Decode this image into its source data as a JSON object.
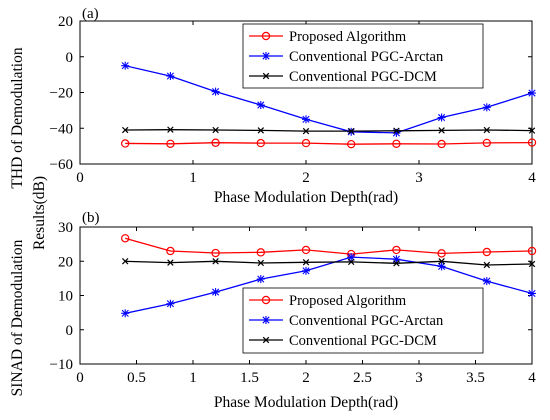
{
  "ylabel_top": "THD of Demodulation",
  "ylabel_bottom": "SINAD of Demodulation",
  "ylabel_shared": "Results(dB)",
  "colors": {
    "proposed": "#ff0000",
    "arctan": "#0000ff",
    "dcm": "#000000"
  },
  "chart_data": [
    {
      "type": "line",
      "panel_label": "(a)",
      "xlabel": "Phase Modulation Depth(rad)",
      "xlim": [
        0,
        4
      ],
      "ylim": [
        -60,
        20
      ],
      "xticks": [
        0,
        1,
        2,
        3,
        4
      ],
      "yticks": [
        -60,
        -40,
        -20,
        0,
        20
      ],
      "legend_position": "top-right",
      "x": [
        0.4,
        0.8,
        1.2,
        1.6,
        2.0,
        2.4,
        2.8,
        3.2,
        3.6,
        4.0
      ],
      "series": [
        {
          "name": "Proposed Algorithm",
          "marker": "circle",
          "color": "#ff0000",
          "values": [
            -48.5,
            -48.7,
            -48.1,
            -48.3,
            -48.3,
            -48.9,
            -48.7,
            -48.8,
            -48.2,
            -48.0
          ]
        },
        {
          "name": "Conventional PGC-Arctan",
          "marker": "asterisk",
          "color": "#0000ff",
          "values": [
            -5.0,
            -10.8,
            -19.5,
            -27.0,
            -35.0,
            -42.0,
            -42.6,
            -34.0,
            -28.3,
            -20.3
          ]
        },
        {
          "name": "Conventional PGC-DCM",
          "marker": "x",
          "color": "#000000",
          "values": [
            -41.0,
            -40.8,
            -41.0,
            -41.2,
            -41.6,
            -41.6,
            -41.4,
            -41.2,
            -41.0,
            -41.3
          ]
        }
      ]
    },
    {
      "type": "line",
      "panel_label": "(b)",
      "xlabel": "Phase Modulation Depth(rad)",
      "xlim": [
        0,
        4
      ],
      "ylim": [
        -10,
        30
      ],
      "xticks": [
        0,
        0.5,
        1,
        1.5,
        2,
        2.5,
        3,
        3.5,
        4
      ],
      "yticks": [
        -10,
        0,
        10,
        20,
        30
      ],
      "legend_position": "bottom-right",
      "x": [
        0.4,
        0.8,
        1.2,
        1.6,
        2.0,
        2.4,
        2.8,
        3.2,
        3.6,
        4.0
      ],
      "series": [
        {
          "name": "Proposed Algorithm",
          "marker": "circle",
          "color": "#ff0000",
          "values": [
            26.7,
            23.0,
            22.4,
            22.6,
            23.3,
            22.1,
            23.3,
            22.3,
            22.7,
            23.0
          ]
        },
        {
          "name": "Conventional PGC-Arctan",
          "marker": "asterisk",
          "color": "#0000ff",
          "values": [
            4.8,
            7.6,
            11.0,
            14.8,
            17.2,
            21.2,
            20.6,
            18.5,
            14.2,
            10.6
          ]
        },
        {
          "name": "Conventional PGC-DCM",
          "marker": "x",
          "color": "#000000",
          "values": [
            20.0,
            19.6,
            20.0,
            19.5,
            19.7,
            19.8,
            19.4,
            20.0,
            18.9,
            19.2
          ]
        }
      ]
    }
  ]
}
